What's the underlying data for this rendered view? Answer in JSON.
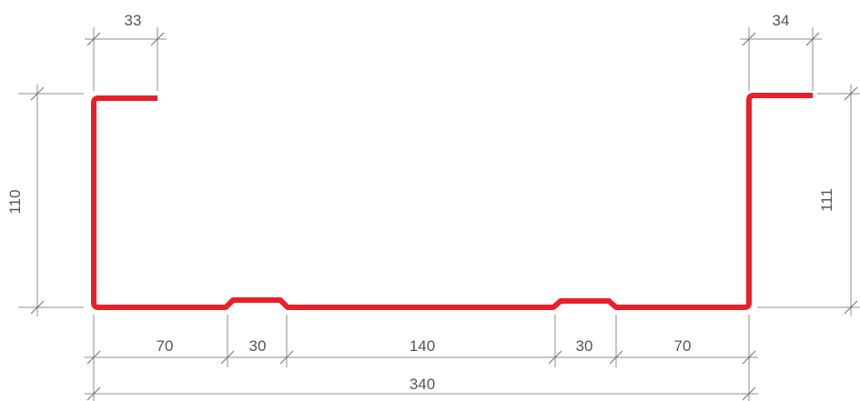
{
  "profile": {
    "color": "#e8202a"
  },
  "dimensions": {
    "top_left_flange": "33",
    "top_right_flange": "34",
    "left_height": "110",
    "right_height": "111",
    "bottom_segments": [
      "70",
      "30",
      "140",
      "30",
      "70"
    ],
    "overall_width": "340"
  }
}
